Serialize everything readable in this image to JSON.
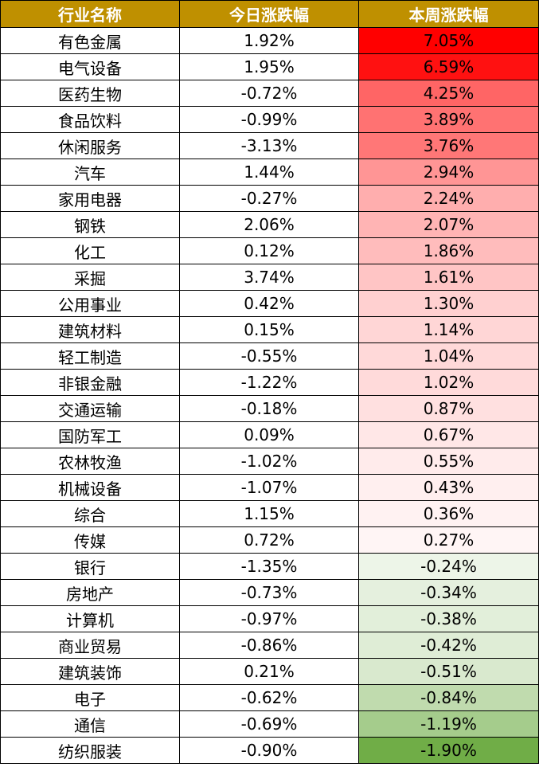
{
  "headers": [
    "行业名称",
    "今日涨跌幅",
    "本周涨跌幅"
  ],
  "colors": {
    "header_bg": "#bf9000",
    "header_text": "#ffffff",
    "positive_scale_max": "#ff0000",
    "negative_scale_max": "#70ad47",
    "grid": "#000000"
  },
  "rows": [
    {
      "name": "有色金属",
      "today": "1.92%",
      "week": "7.05%",
      "week_value": 7.05
    },
    {
      "name": "电气设备",
      "today": "1.95%",
      "week": "6.59%",
      "week_value": 6.59
    },
    {
      "name": "医药生物",
      "today": "-0.72%",
      "week": "4.25%",
      "week_value": 4.25
    },
    {
      "name": "食品饮料",
      "today": "-0.99%",
      "week": "3.89%",
      "week_value": 3.89
    },
    {
      "name": "休闲服务",
      "today": "-3.13%",
      "week": "3.76%",
      "week_value": 3.76
    },
    {
      "name": "汽车",
      "today": "1.44%",
      "week": "2.94%",
      "week_value": 2.94
    },
    {
      "name": "家用电器",
      "today": "-0.27%",
      "week": "2.24%",
      "week_value": 2.24
    },
    {
      "name": "钢铁",
      "today": "2.06%",
      "week": "2.07%",
      "week_value": 2.07
    },
    {
      "name": "化工",
      "today": "0.12%",
      "week": "1.86%",
      "week_value": 1.86
    },
    {
      "name": "采掘",
      "today": "3.74%",
      "week": "1.61%",
      "week_value": 1.61
    },
    {
      "name": "公用事业",
      "today": "0.42%",
      "week": "1.30%",
      "week_value": 1.3
    },
    {
      "name": "建筑材料",
      "today": "0.15%",
      "week": "1.14%",
      "week_value": 1.14
    },
    {
      "name": "轻工制造",
      "today": "-0.55%",
      "week": "1.04%",
      "week_value": 1.04
    },
    {
      "name": "非银金融",
      "today": "-1.22%",
      "week": "1.02%",
      "week_value": 1.02
    },
    {
      "name": "交通运输",
      "today": "-0.18%",
      "week": "0.87%",
      "week_value": 0.87
    },
    {
      "name": "国防军工",
      "today": "0.09%",
      "week": "0.67%",
      "week_value": 0.67
    },
    {
      "name": "农林牧渔",
      "today": "-1.02%",
      "week": "0.55%",
      "week_value": 0.55
    },
    {
      "name": "机械设备",
      "today": "-1.07%",
      "week": "0.43%",
      "week_value": 0.43
    },
    {
      "name": "综合",
      "today": "1.15%",
      "week": "0.36%",
      "week_value": 0.36
    },
    {
      "name": "传媒",
      "today": "0.72%",
      "week": "0.27%",
      "week_value": 0.27
    },
    {
      "name": "银行",
      "today": "-1.35%",
      "week": "-0.24%",
      "week_value": -0.24
    },
    {
      "name": "房地产",
      "today": "-0.73%",
      "week": "-0.34%",
      "week_value": -0.34
    },
    {
      "name": "计算机",
      "today": "-0.97%",
      "week": "-0.38%",
      "week_value": -0.38
    },
    {
      "name": "商业贸易",
      "today": "-0.86%",
      "week": "-0.42%",
      "week_value": -0.42
    },
    {
      "name": "建筑装饰",
      "today": "0.21%",
      "week": "-0.51%",
      "week_value": -0.51
    },
    {
      "name": "电子",
      "today": "-0.62%",
      "week": "-0.84%",
      "week_value": -0.84
    },
    {
      "name": "通信",
      "today": "-0.69%",
      "week": "-1.19%",
      "week_value": -1.19
    },
    {
      "name": "纺织服装",
      "today": "-0.90%",
      "week": "-1.90%",
      "week_value": -1.9
    }
  ]
}
